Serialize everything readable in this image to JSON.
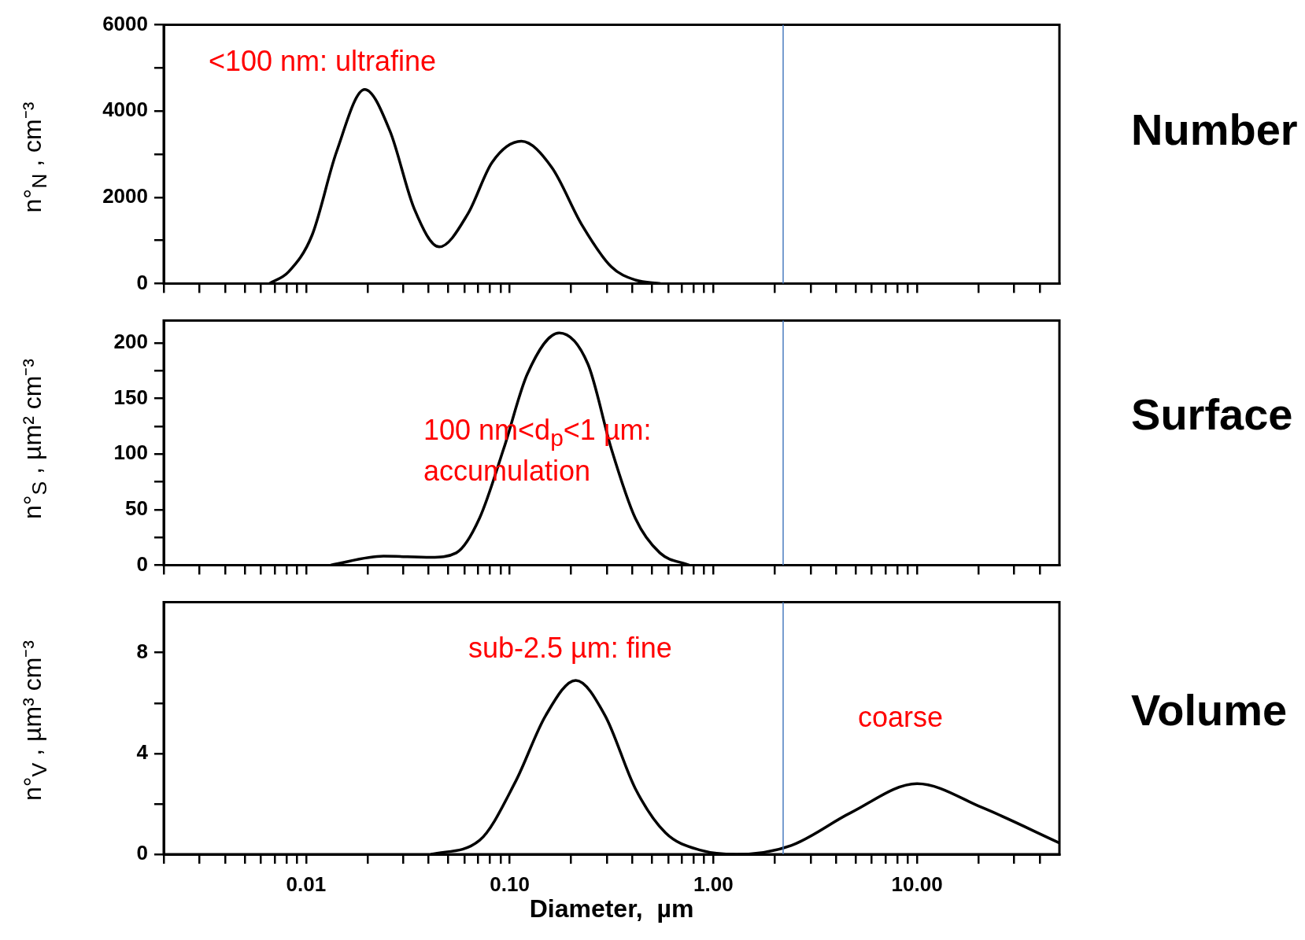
{
  "chart_data": [
    {
      "type": "line",
      "ylabel": "n°$_{N}$ , cm⁻³",
      "xlim": [
        0.002,
        50
      ],
      "log": "x",
      "tick_labels": "y",
      "color": "#000000",
      "marker": "none",
      "line_style": "solid",
      "xticks": [
        {
          "value": 0.002,
          "label": null
        },
        {
          "value": 0.003,
          "label": null
        },
        {
          "value": 0.004,
          "label": null
        },
        {
          "value": 0.005,
          "label": null
        },
        {
          "value": 0.006,
          "label": null
        },
        {
          "value": 0.007,
          "label": null
        },
        {
          "value": 0.008,
          "label": null
        },
        {
          "value": 0.009,
          "label": null
        },
        {
          "value": 0.01,
          "label": null
        },
        {
          "value": 0.02,
          "label": null
        },
        {
          "value": 0.03,
          "label": null
        },
        {
          "value": 0.04,
          "label": null
        },
        {
          "value": 0.05,
          "label": null
        },
        {
          "value": 0.06,
          "label": null
        },
        {
          "value": 0.07,
          "label": null
        },
        {
          "value": 0.08,
          "label": null
        },
        {
          "value": 0.09,
          "label": null
        },
        {
          "value": 0.1,
          "label": null
        },
        {
          "value": 0.2,
          "label": null
        },
        {
          "value": 0.3,
          "label": null
        },
        {
          "value": 0.4,
          "label": null
        },
        {
          "value": 0.5,
          "label": null
        },
        {
          "value": 0.6,
          "label": null
        },
        {
          "value": 0.7,
          "label": null
        },
        {
          "value": 0.8,
          "label": null
        },
        {
          "value": 0.9,
          "label": null
        },
        {
          "value": 1,
          "label": null
        },
        {
          "value": 2,
          "label": null
        },
        {
          "value": 3,
          "label": null
        },
        {
          "value": 4,
          "label": null
        },
        {
          "value": 5,
          "label": null
        },
        {
          "value": 6,
          "label": null
        },
        {
          "value": 7,
          "label": null
        },
        {
          "value": 8,
          "label": null
        },
        {
          "value": 9,
          "label": null
        },
        {
          "value": 10,
          "label": null
        },
        {
          "value": 20,
          "label": null
        },
        {
          "value": 30,
          "label": null
        },
        {
          "value": 40,
          "label": null
        }
      ],
      "ylim": [
        0,
        6000
      ],
      "yticks": [
        0,
        {
          "value": 1000,
          "label": null
        },
        2000,
        {
          "value": 3000,
          "label": null
        },
        4000,
        {
          "value": 5000,
          "label": null
        },
        6000
      ],
      "x": [
        0.0066,
        0.0082,
        0.0107,
        0.0141,
        0.0194,
        0.0258,
        0.034,
        0.0451,
        0.0622,
        0.0819,
        0.114,
        0.161,
        0.226,
        0.315,
        0.414,
        0.55
      ],
      "values": [
        0,
        270,
        1120,
        3050,
        4500,
        3540,
        1730,
        850,
        1610,
        2810,
        3300,
        2690,
        1360,
        390,
        80,
        0
      ],
      "ref_lines": [
        {
          "axis": "x",
          "value": 2.2,
          "color": "#4a7cc0"
        }
      ],
      "annotations": [
        "Number",
        "<100 nm: ultrafine"
      ]
    },
    {
      "type": "line",
      "ylabel": "n°$_{S}$ , µm² cm⁻³",
      "xlim": [
        0.002,
        50
      ],
      "log": "x",
      "tick_labels": "y",
      "color": "#000000",
      "marker": "none",
      "line_style": "solid",
      "xticks": [
        {
          "value": 0.002,
          "label": null
        },
        {
          "value": 0.003,
          "label": null
        },
        {
          "value": 0.004,
          "label": null
        },
        {
          "value": 0.005,
          "label": null
        },
        {
          "value": 0.006,
          "label": null
        },
        {
          "value": 0.007,
          "label": null
        },
        {
          "value": 0.008,
          "label": null
        },
        {
          "value": 0.009,
          "label": null
        },
        {
          "value": 0.01,
          "label": null
        },
        {
          "value": 0.02,
          "label": null
        },
        {
          "value": 0.03,
          "label": null
        },
        {
          "value": 0.04,
          "label": null
        },
        {
          "value": 0.05,
          "label": null
        },
        {
          "value": 0.06,
          "label": null
        },
        {
          "value": 0.07,
          "label": null
        },
        {
          "value": 0.08,
          "label": null
        },
        {
          "value": 0.09,
          "label": null
        },
        {
          "value": 0.1,
          "label": null
        },
        {
          "value": 0.2,
          "label": null
        },
        {
          "value": 0.3,
          "label": null
        },
        {
          "value": 0.4,
          "label": null
        },
        {
          "value": 0.5,
          "label": null
        },
        {
          "value": 0.6,
          "label": null
        },
        {
          "value": 0.7,
          "label": null
        },
        {
          "value": 0.8,
          "label": null
        },
        {
          "value": 0.9,
          "label": null
        },
        {
          "value": 1,
          "label": null
        },
        {
          "value": 2,
          "label": null
        },
        {
          "value": 3,
          "label": null
        },
        {
          "value": 4,
          "label": null
        },
        {
          "value": 5,
          "label": null
        },
        {
          "value": 6,
          "label": null
        },
        {
          "value": 7,
          "label": null
        },
        {
          "value": 8,
          "label": null
        },
        {
          "value": 9,
          "label": null
        },
        {
          "value": 10,
          "label": null
        },
        {
          "value": 20,
          "label": null
        },
        {
          "value": 30,
          "label": null
        },
        {
          "value": 40,
          "label": null
        }
      ],
      "ylim": [
        0,
        220
      ],
      "yticks": [
        0,
        {
          "value": 25,
          "label": null
        },
        50,
        {
          "value": 75,
          "label": null
        },
        100,
        {
          "value": 125,
          "label": null
        },
        150,
        {
          "value": 175,
          "label": null
        },
        200
      ],
      "x": [
        0.0132,
        0.024,
        0.041,
        0.0546,
        0.071,
        0.0935,
        0.122,
        0.175,
        0.242,
        0.315,
        0.414,
        0.546,
        0.76
      ],
      "values": [
        0,
        8,
        7,
        11,
        42,
        105,
        172,
        209,
        181,
        105,
        42,
        11,
        0
      ],
      "ref_lines": [
        {
          "axis": "x",
          "value": 2.2,
          "color": "#4a7cc0"
        }
      ],
      "annotations": [
        "Surface",
        "100 nm<d$_{p}$<1 µm: accumulation"
      ]
    },
    {
      "type": "line",
      "ylabel": "n°$_{V}$ , µm³ cm⁻³",
      "xlabel": "Diameter,  µm",
      "xlim": [
        0.002,
        50
      ],
      "log": "x",
      "color": "#000000",
      "marker": "none",
      "line_style": "solid",
      "xticks": [
        {
          "value": 0.002,
          "label": null
        },
        {
          "value": 0.003,
          "label": null
        },
        {
          "value": 0.004,
          "label": null
        },
        {
          "value": 0.005,
          "label": null
        },
        {
          "value": 0.006,
          "label": null
        },
        {
          "value": 0.007,
          "label": null
        },
        {
          "value": 0.008,
          "label": null
        },
        {
          "value": 0.009,
          "label": null
        },
        {
          "value": 0.01,
          "label": "0.01"
        },
        {
          "value": 0.02,
          "label": null
        },
        {
          "value": 0.03,
          "label": null
        },
        {
          "value": 0.04,
          "label": null
        },
        {
          "value": 0.05,
          "label": null
        },
        {
          "value": 0.06,
          "label": null
        },
        {
          "value": 0.07,
          "label": null
        },
        {
          "value": 0.08,
          "label": null
        },
        {
          "value": 0.09,
          "label": null
        },
        {
          "value": 0.1,
          "label": "0.10"
        },
        {
          "value": 0.2,
          "label": null
        },
        {
          "value": 0.3,
          "label": null
        },
        {
          "value": 0.4,
          "label": null
        },
        {
          "value": 0.5,
          "label": null
        },
        {
          "value": 0.6,
          "label": null
        },
        {
          "value": 0.7,
          "label": null
        },
        {
          "value": 0.8,
          "label": null
        },
        {
          "value": 0.9,
          "label": null
        },
        {
          "value": 1,
          "label": "1.00"
        },
        {
          "value": 2,
          "label": null
        },
        {
          "value": 3,
          "label": null
        },
        {
          "value": 4,
          "label": null
        },
        {
          "value": 5,
          "label": null
        },
        {
          "value": 6,
          "label": null
        },
        {
          "value": 7,
          "label": null
        },
        {
          "value": 8,
          "label": null
        },
        {
          "value": 9,
          "label": null
        },
        {
          "value": 10,
          "label": "10.00"
        },
        {
          "value": 20,
          "label": null
        },
        {
          "value": 30,
          "label": null
        },
        {
          "value": 40,
          "label": null
        }
      ],
      "ylim": [
        0,
        10
      ],
      "yticks": [
        0,
        {
          "value": 2,
          "label": null
        },
        4,
        {
          "value": 6,
          "label": null
        },
        8
      ],
      "x": [
        0.041,
        0.071,
        0.107,
        0.15,
        0.211,
        0.294,
        0.414,
        0.582,
        0.875,
        1.3,
        2.41,
        4.73,
        10,
        20.9,
        50
      ],
      "values": [
        0,
        0.55,
        2.9,
        5.5,
        6.9,
        5.5,
        2.6,
        0.85,
        0.15,
        0,
        0.35,
        1.65,
        2.8,
        1.85,
        0.45
      ],
      "ref_lines": [
        {
          "axis": "x",
          "value": 2.2,
          "color": "#4a7cc0"
        }
      ],
      "annotations": [
        "Volume",
        "sub-2.5 µm: fine",
        "coarse"
      ]
    }
  ]
}
